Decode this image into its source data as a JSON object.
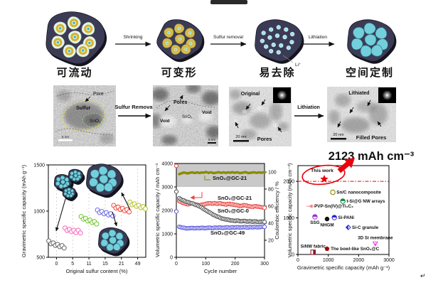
{
  "schematic": {
    "steps": [
      {
        "label": "可流动",
        "color": "#1a1a1a"
      },
      {
        "label": "可变形",
        "color": "#1a1a1a"
      },
      {
        "label": "易去除",
        "color": "#1a1a1a"
      },
      {
        "label": "空间定制",
        "color": "#e8000d"
      }
    ],
    "arrow_labels": [
      "Shrinking",
      "Sulfur removal",
      "Lithiation"
    ],
    "li_label": "Li⁺"
  },
  "tem_row": {
    "panel1": {
      "pore": "Pore",
      "sulfur": "Sulfur",
      "sno2": "SnO₂",
      "scalebar": "5 nm"
    },
    "arrow1": "Sulfur Removal",
    "panel2": {
      "pores": "Pores",
      "void_left": "Void",
      "void_right": "Void",
      "sno2": "SnO₂",
      "scalebar": "5 nm"
    },
    "panel3": {
      "state": "Original",
      "region": "Pores",
      "scalebar": "20 nm"
    },
    "arrow2": "Lithiation",
    "panel4": {
      "state": "Lithiated",
      "region": "Filled Pores",
      "scalebar": "20 nm"
    }
  },
  "highlight_value": "2123 mAh cm⁻³",
  "return_mark": "↵",
  "chart_data": [
    {
      "type": "scatter",
      "xlabel": "Original sulfur content (%)",
      "ylabel": "Gravimetric specific capacity (mAh g⁻¹)",
      "xticks": [
        "0",
        "5",
        "11",
        "15",
        "21",
        "49"
      ],
      "ylim": [
        500,
        1500
      ],
      "yticks": [
        500,
        1000,
        1500
      ],
      "grid": "vertical-dashed",
      "clusters": [
        {
          "sulfur_content": "0",
          "color": "#707070",
          "values": [
            668,
            656,
            646,
            638,
            630,
            624,
            617,
            610
          ]
        },
        {
          "sulfur_content": "5",
          "color": "#ff6fc0",
          "values": [
            808,
            800,
            793,
            787,
            782,
            778,
            784,
            772
          ]
        },
        {
          "sulfur_content": "11",
          "color": "#78c838",
          "values": [
            932,
            922,
            912,
            902,
            893,
            885,
            878,
            870
          ]
        },
        {
          "sulfur_content": "15",
          "color": "#7070e8",
          "values": [
            1002,
            994,
            987,
            980,
            974,
            968,
            962,
            956
          ]
        },
        {
          "sulfur_content": "21",
          "color": "#f05040",
          "values": [
            1052,
            1043,
            1035,
            1027,
            1020,
            1013,
            1007,
            1001
          ]
        },
        {
          "sulfur_content": "49",
          "color": "#c0c43c",
          "values": [
            1088,
            1078,
            1069,
            1061,
            1053,
            1046,
            1040,
            1034
          ]
        }
      ]
    },
    {
      "type": "line",
      "xlabel": "Cycle number",
      "ylabel_left": "Volumetric specific capacity / mAh cm⁻³",
      "ylabel_right": "Coulombic efficiency / %",
      "xlim": [
        0,
        300
      ],
      "xticks": [
        0,
        100,
        200,
        300
      ],
      "ylim_left": [
        0,
        4000
      ],
      "yticks_left": [
        0,
        1000,
        2000,
        3000,
        4000
      ],
      "ylim_right": [
        0,
        110
      ],
      "yticks_right": [
        20,
        40,
        60,
        80,
        100
      ],
      "band_left_axis": [
        3000,
        4000
      ],
      "cycles": [
        0,
        10,
        20,
        30,
        40,
        50,
        60,
        70,
        80,
        90,
        100,
        110,
        120,
        130,
        140,
        150,
        160,
        170,
        180,
        190,
        200,
        210,
        220,
        230,
        240,
        250,
        260,
        270,
        280,
        290,
        300
      ],
      "series": [
        {
          "name": "SnO₂@GC-21",
          "role": "coulombic_efficiency",
          "axis": "right",
          "color": "#8a8a00",
          "values": [
            78,
            97.6,
            98.8,
            99.2,
            98.6,
            99.4,
            99,
            99.6,
            98.9,
            99.3,
            100.1,
            99,
            99.5,
            98.8,
            99.6,
            99.2,
            99.7,
            99,
            99.4,
            99.8,
            99.1,
            99.5,
            98.9,
            99.6,
            99.3,
            99,
            99.5,
            99.2,
            99.6,
            99.1,
            99.4
          ]
        },
        {
          "name": "SnO₂@GC-21",
          "role": "capacity",
          "axis": "left",
          "color": "#e8413c",
          "values": [
            3900,
            2400,
            2330,
            2290,
            2260,
            2300,
            2270,
            2240,
            2210,
            2250,
            2280,
            2300,
            2290,
            2310,
            2280,
            2300,
            2270,
            2250,
            2280,
            2260,
            2230,
            2210,
            2190,
            2220,
            2200,
            2170,
            2150,
            2180,
            2160,
            2130,
            2110
          ]
        },
        {
          "name": "SnO₂@GC-0",
          "role": "capacity",
          "axis": "left",
          "color": "#555555",
          "values": [
            2800,
            2520,
            2440,
            2390,
            2350,
            2310,
            2270,
            2220,
            2160,
            2090,
            2010,
            1930,
            1860,
            1790,
            1730,
            1680,
            1640,
            1610,
            1590,
            1570,
            1550,
            1565,
            1535,
            1550,
            1525,
            1540,
            1515,
            1530,
            1505,
            1520,
            1510
          ]
        },
        {
          "name": "SnO₂@GC-49",
          "role": "capacity",
          "axis": "left",
          "color": "#5a5ae0",
          "values": [
            1950,
            1300,
            1265,
            1245,
            1235,
            1250,
            1238,
            1252,
            1242,
            1258,
            1246,
            1262,
            1250,
            1266,
            1254,
            1270,
            1258,
            1274,
            1262,
            1278,
            1266,
            1282,
            1270,
            1286,
            1274,
            1290,
            1278,
            1294,
            1282,
            1298,
            1300
          ]
        }
      ]
    },
    {
      "type": "scatter",
      "xlabel": "Gravimetric specific capacity (mAh g⁻¹)",
      "ylabel": "Volumetric specific capacity (mAh cm⁻³)",
      "xlim": [
        0,
        3000
      ],
      "xticks": [
        0,
        1000,
        2000,
        3000
      ],
      "ylim": [
        0,
        2430
      ],
      "yticks": [
        0,
        1000,
        2000
      ],
      "refline": {
        "y": 2000,
        "style": "dash-dot",
        "color": "#e8000d"
      },
      "highlight": {
        "label": "This work",
        "x": 890,
        "y": 2123,
        "color": "#e8000d"
      },
      "points": [
        {
          "name": "Sn/C nanocomposite",
          "x": 1150,
          "y": 1700,
          "color": "#8a8a00",
          "marker": "circle-open",
          "label_side": "right"
        },
        {
          "name": "t-Si@G NW arrays",
          "x": 1480,
          "y": 1460,
          "color": "#0f8c3c",
          "marker": "half-circle",
          "label_side": "right"
        },
        {
          "name": "PVP-Sn(IV)@Ti₃C₂",
          "x": 420,
          "y": 1320,
          "color": "#f08888",
          "marker": "left-triangle",
          "label_side": "right"
        },
        {
          "name": "SSG",
          "x": 560,
          "y": 1030,
          "color": "#9932cc",
          "marker": "half-circle",
          "label_side": "below"
        },
        {
          "name": "NHGM",
          "x": 960,
          "y": 970,
          "color": "#111111",
          "marker": "circle",
          "label_side": "below"
        },
        {
          "name": "Si-PANi",
          "x": 1200,
          "y": 1010,
          "color": "#2828d8",
          "marker": "half-circle",
          "label_side": "right"
        },
        {
          "name": "Si-C granule",
          "x": 1660,
          "y": 740,
          "color": "#2828d8",
          "marker": "half-diamond",
          "label_side": "right"
        },
        {
          "name": "3D Si membrane",
          "x": 2550,
          "y": 300,
          "color": "#ee3dee",
          "marker": "down-triangle",
          "label_side": "above"
        },
        {
          "name": "SiNW fabric",
          "x": 500,
          "y": 60,
          "color": "#8b1a2a",
          "marker": "half-square",
          "label_side": "above",
          "label_color": "#111111"
        },
        {
          "name": "The bowl-like SnO₂@C",
          "x": 960,
          "y": 155,
          "color": "#a00000",
          "marker": "pentagon",
          "label_side": "right"
        }
      ]
    }
  ]
}
